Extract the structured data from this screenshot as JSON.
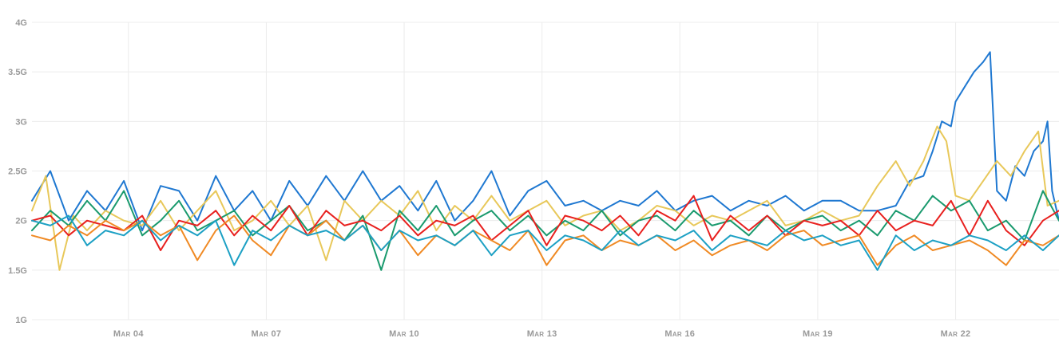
{
  "chart_data": {
    "type": "line",
    "title": "",
    "xlabel": "",
    "ylabel": "",
    "ylim": [
      1,
      4
    ],
    "y_ticks": [
      "1G",
      "1.5G",
      "2G",
      "2.5G",
      "3G",
      "3.5G",
      "4G"
    ],
    "y_tick_values": [
      1,
      1.5,
      2,
      2.5,
      3,
      3.5,
      4
    ],
    "x_ticks": [
      "Mar 04",
      "Mar 07",
      "Mar 10",
      "Mar 13",
      "Mar 16",
      "Mar 19",
      "Mar 22"
    ],
    "x_tick_values": [
      4,
      7,
      10,
      13,
      16,
      19,
      22
    ],
    "xlim": [
      1.9,
      24.25
    ],
    "grid": true,
    "legend": "none",
    "colors": {
      "blue": "#1f78d1",
      "yellow": "#e8c85a",
      "green": "#1a9a6e",
      "red": "#e8201e",
      "orange": "#f08a24",
      "cyan": "#1ca0c4"
    },
    "series": [
      {
        "color": "#1f78d1",
        "x": [
          1.9,
          2.3,
          2.7,
          3.1,
          3.5,
          3.9,
          4.3,
          4.7,
          5.1,
          5.5,
          5.9,
          6.3,
          6.7,
          7.1,
          7.5,
          7.9,
          8.3,
          8.7,
          9.1,
          9.5,
          9.9,
          10.3,
          10.7,
          11.1,
          11.5,
          11.9,
          12.3,
          12.7,
          13.1,
          13.5,
          13.9,
          14.3,
          14.7,
          15.1,
          15.5,
          15.9,
          16.3,
          16.7,
          17.1,
          17.5,
          17.9,
          18.3,
          18.7,
          19.1,
          19.5,
          19.9,
          20.3,
          20.7,
          21.0,
          21.3,
          21.5,
          21.7,
          21.9,
          22.0,
          22.2,
          22.4,
          22.6,
          22.75,
          22.9,
          23.1,
          23.3,
          23.5,
          23.7,
          23.9,
          24.0,
          24.1,
          24.25
        ],
        "y": [
          2.2,
          2.5,
          2.0,
          2.3,
          2.1,
          2.4,
          1.9,
          2.35,
          2.3,
          2.0,
          2.45,
          2.1,
          2.3,
          2.0,
          2.4,
          2.15,
          2.45,
          2.2,
          2.5,
          2.2,
          2.35,
          2.1,
          2.4,
          2.0,
          2.2,
          2.5,
          2.05,
          2.3,
          2.4,
          2.15,
          2.2,
          2.1,
          2.2,
          2.15,
          2.3,
          2.1,
          2.2,
          2.25,
          2.1,
          2.2,
          2.15,
          2.25,
          2.1,
          2.2,
          2.2,
          2.1,
          2.1,
          2.15,
          2.4,
          2.45,
          2.7,
          3.0,
          2.95,
          3.2,
          3.35,
          3.5,
          3.6,
          3.7,
          2.3,
          2.2,
          2.55,
          2.45,
          2.7,
          2.8,
          3.0,
          2.3,
          2.0
        ]
      },
      {
        "color": "#e8c85a",
        "x": [
          1.9,
          2.2,
          2.5,
          2.8,
          3.1,
          3.5,
          3.9,
          4.3,
          4.7,
          5.1,
          5.5,
          5.9,
          6.3,
          6.7,
          7.1,
          7.5,
          7.9,
          8.3,
          8.7,
          9.1,
          9.5,
          9.9,
          10.3,
          10.7,
          11.1,
          11.5,
          11.9,
          12.3,
          12.7,
          13.1,
          13.5,
          13.9,
          14.3,
          14.7,
          15.1,
          15.5,
          15.9,
          16.3,
          16.7,
          17.1,
          17.5,
          17.9,
          18.3,
          18.7,
          19.1,
          19.5,
          19.9,
          20.3,
          20.7,
          21.0,
          21.3,
          21.6,
          21.8,
          22.0,
          22.3,
          22.6,
          22.9,
          23.2,
          23.5,
          23.8,
          24.0,
          24.25
        ],
        "y": [
          2.1,
          2.45,
          1.5,
          2.05,
          1.9,
          2.1,
          2.0,
          1.95,
          2.2,
          1.9,
          2.1,
          2.3,
          1.9,
          2.0,
          2.2,
          1.95,
          2.15,
          1.6,
          2.2,
          2.0,
          2.2,
          2.05,
          2.3,
          1.9,
          2.15,
          2.0,
          2.25,
          2.0,
          2.1,
          2.2,
          1.95,
          2.05,
          2.1,
          1.9,
          2.0,
          2.15,
          2.1,
          1.95,
          2.05,
          2.0,
          2.1,
          2.2,
          1.95,
          2.0,
          2.1,
          2.0,
          2.05,
          2.35,
          2.6,
          2.35,
          2.6,
          2.95,
          2.8,
          2.25,
          2.2,
          2.4,
          2.6,
          2.45,
          2.7,
          2.9,
          2.15,
          2.2
        ]
      },
      {
        "color": "#1a9a6e",
        "x": [
          1.9,
          2.3,
          2.7,
          3.1,
          3.5,
          3.9,
          4.3,
          4.7,
          5.1,
          5.5,
          5.9,
          6.3,
          6.7,
          7.1,
          7.5,
          7.9,
          8.3,
          8.7,
          9.1,
          9.5,
          9.9,
          10.3,
          10.7,
          11.1,
          11.5,
          11.9,
          12.3,
          12.7,
          13.1,
          13.5,
          13.9,
          14.3,
          14.7,
          15.1,
          15.5,
          15.9,
          16.3,
          16.7,
          17.1,
          17.5,
          17.9,
          18.3,
          18.7,
          19.1,
          19.5,
          19.9,
          20.3,
          20.7,
          21.1,
          21.5,
          21.9,
          22.3,
          22.7,
          23.1,
          23.5,
          23.9,
          24.25
        ],
        "y": [
          1.9,
          2.1,
          1.95,
          2.2,
          2.0,
          2.3,
          1.85,
          2.0,
          2.2,
          1.9,
          2.0,
          2.1,
          1.85,
          2.0,
          2.15,
          1.9,
          2.0,
          1.8,
          2.05,
          1.5,
          2.1,
          1.9,
          2.15,
          1.85,
          2.0,
          2.1,
          1.9,
          2.05,
          1.85,
          2.0,
          1.9,
          2.1,
          1.85,
          2.0,
          2.05,
          1.9,
          2.1,
          1.95,
          2.0,
          1.85,
          2.05,
          1.9,
          2.0,
          2.05,
          1.9,
          2.0,
          1.85,
          2.1,
          2.0,
          2.25,
          2.1,
          2.2,
          1.9,
          2.0,
          1.8,
          2.3,
          2.0
        ]
      },
      {
        "color": "#e8201e",
        "x": [
          1.9,
          2.3,
          2.7,
          3.1,
          3.5,
          3.9,
          4.3,
          4.7,
          5.1,
          5.5,
          5.9,
          6.3,
          6.7,
          7.1,
          7.5,
          7.9,
          8.3,
          8.7,
          9.1,
          9.5,
          9.9,
          10.3,
          10.7,
          11.1,
          11.5,
          11.9,
          12.3,
          12.7,
          13.1,
          13.5,
          13.9,
          14.3,
          14.7,
          15.1,
          15.5,
          15.9,
          16.3,
          16.7,
          17.1,
          17.5,
          17.9,
          18.3,
          18.7,
          19.1,
          19.5,
          19.9,
          20.3,
          20.7,
          21.1,
          21.5,
          21.9,
          22.3,
          22.7,
          23.1,
          23.5,
          23.9,
          24.25
        ],
        "y": [
          2.0,
          2.05,
          1.85,
          2.0,
          1.95,
          1.9,
          2.05,
          1.7,
          2.0,
          1.95,
          2.1,
          1.85,
          2.05,
          1.9,
          2.15,
          1.85,
          2.1,
          1.95,
          2.0,
          1.9,
          2.05,
          1.85,
          2.0,
          1.95,
          2.05,
          1.8,
          1.95,
          2.1,
          1.75,
          2.05,
          2.0,
          1.9,
          2.05,
          1.85,
          2.1,
          2.0,
          2.25,
          1.8,
          2.05,
          1.9,
          2.05,
          1.85,
          2.0,
          1.95,
          2.0,
          1.85,
          2.1,
          1.9,
          2.0,
          1.95,
          2.2,
          1.85,
          2.2,
          1.9,
          1.75,
          2.0,
          2.1
        ]
      },
      {
        "color": "#f08a24",
        "x": [
          1.9,
          2.3,
          2.7,
          3.1,
          3.5,
          3.9,
          4.3,
          4.7,
          5.1,
          5.5,
          5.9,
          6.3,
          6.7,
          7.1,
          7.5,
          7.9,
          8.3,
          8.7,
          9.1,
          9.5,
          9.9,
          10.3,
          10.7,
          11.1,
          11.5,
          11.9,
          12.3,
          12.7,
          13.1,
          13.5,
          13.9,
          14.3,
          14.7,
          15.1,
          15.5,
          15.9,
          16.3,
          16.7,
          17.1,
          17.5,
          17.9,
          18.3,
          18.7,
          19.1,
          19.5,
          19.9,
          20.3,
          20.7,
          21.1,
          21.5,
          21.9,
          22.3,
          22.7,
          23.1,
          23.5,
          23.9,
          24.25
        ],
        "y": [
          1.85,
          1.8,
          1.95,
          1.85,
          2.0,
          1.9,
          2.0,
          1.85,
          1.95,
          1.6,
          1.9,
          2.05,
          1.8,
          1.65,
          1.95,
          1.85,
          2.0,
          1.8,
          1.95,
          1.7,
          1.9,
          1.65,
          1.85,
          1.75,
          1.9,
          1.8,
          1.7,
          1.9,
          1.55,
          1.8,
          1.85,
          1.7,
          1.8,
          1.75,
          1.85,
          1.7,
          1.8,
          1.65,
          1.75,
          1.8,
          1.7,
          1.85,
          1.9,
          1.75,
          1.8,
          1.85,
          1.55,
          1.75,
          1.85,
          1.7,
          1.75,
          1.8,
          1.7,
          1.55,
          1.8,
          1.75,
          1.85
        ]
      },
      {
        "color": "#1ca0c4",
        "x": [
          1.9,
          2.3,
          2.7,
          3.1,
          3.5,
          3.9,
          4.3,
          4.7,
          5.1,
          5.5,
          5.9,
          6.3,
          6.7,
          7.1,
          7.5,
          7.9,
          8.3,
          8.7,
          9.1,
          9.5,
          9.9,
          10.3,
          10.7,
          11.1,
          11.5,
          11.9,
          12.3,
          12.7,
          13.1,
          13.5,
          13.9,
          14.3,
          14.7,
          15.1,
          15.5,
          15.9,
          16.3,
          16.7,
          17.1,
          17.5,
          17.9,
          18.3,
          18.7,
          19.1,
          19.5,
          19.9,
          20.3,
          20.7,
          21.1,
          21.5,
          21.9,
          22.3,
          22.7,
          23.1,
          23.5,
          23.9,
          24.25
        ],
        "y": [
          2.0,
          1.95,
          2.05,
          1.75,
          1.9,
          1.85,
          2.0,
          1.8,
          1.95,
          1.85,
          2.0,
          1.55,
          1.9,
          1.8,
          1.95,
          1.85,
          1.9,
          1.8,
          1.95,
          1.7,
          1.9,
          1.8,
          1.85,
          1.75,
          1.9,
          1.65,
          1.85,
          1.9,
          1.7,
          1.85,
          1.8,
          1.7,
          1.9,
          1.75,
          1.85,
          1.8,
          1.9,
          1.7,
          1.85,
          1.8,
          1.75,
          1.9,
          1.8,
          1.85,
          1.75,
          1.8,
          1.5,
          1.85,
          1.7,
          1.8,
          1.75,
          1.85,
          1.8,
          1.7,
          1.85,
          1.7,
          1.85
        ]
      }
    ]
  }
}
